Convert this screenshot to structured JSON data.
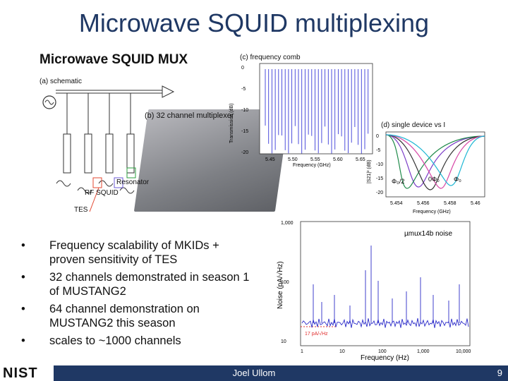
{
  "slide": {
    "title": "Microwave SQUID multiplexing",
    "page_number": "9"
  },
  "figure": {
    "heading": "Microwave SQUID MUX",
    "panel_a": "(a) schematic",
    "panel_b": "(b) 32 channel multiplexer",
    "panel_c": "(c) frequency comb",
    "panel_d": "(d) single device vs I",
    "label_resonator": "Resonator",
    "label_rf_squid": "RF SQUID",
    "label_tes": "TES",
    "comb": {
      "ylabel": "Transmission (dB)",
      "xlabel": "Frequency (GHz)",
      "yticks": [
        "0",
        "-5",
        "-10",
        "-15",
        "-20"
      ],
      "xticks": [
        "5.45",
        "5.50",
        "5.55",
        "5.60",
        "5.65"
      ]
    },
    "single": {
      "ylabel": "|S21|² (dB)",
      "xlabel": "Frequency (GHz)",
      "yticks": [
        "0",
        "-5",
        "-10",
        "-15",
        "-20"
      ],
      "xticks": [
        "5.454",
        "5.456",
        "5.458",
        "5.46"
      ],
      "label_half": "Φ₀/2",
      "label_zero": "0Φ₀",
      "label_one": "Φ₀"
    }
  },
  "bullets": [
    "Frequency scalability of MKIDs + proven sensitivity of TES",
    "32 channels demonstrated in season 1 of MUSTANG2",
    "64 channel demonstration on MUSTANG2 this season",
    "scales to ~1000 channels"
  ],
  "noise_plot": {
    "legend": "µmux14b noise",
    "annotation": "17 pA/√Hz",
    "ylabel": "Noise (pA/√Hz)",
    "xlabel": "Frequency (Hz)",
    "yticks": [
      "1,000",
      "100",
      "10"
    ],
    "xticks": [
      "1",
      "10",
      "100",
      "1,000",
      "10,000"
    ],
    "line_color": "#2b2bc9",
    "annotation_color": "#e03030"
  },
  "footer": {
    "logo": "NIST",
    "presenter": "Joel Ullom"
  },
  "colors": {
    "title": "#1f3864",
    "footer_bar": "#1f3864"
  }
}
